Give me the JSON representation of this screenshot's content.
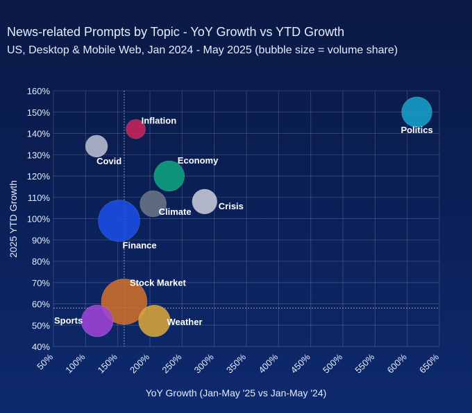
{
  "title": "News-related Prompts by Topic - YoY Growth vs YTD Growth",
  "subtitle": "US, Desktop & Mobile Web, Jan 2024 - May 2025 (bubble size = volume share)",
  "chart_data": {
    "type": "scatter",
    "title": "News-related Prompts by Topic - YoY Growth vs YTD Growth",
    "subtitle": "US, Desktop & Mobile Web, Jan 2024 - May 2025 (bubble size = volume share)",
    "xlabel": "YoY Growth (Jan-May '25 vs Jan-May '24)",
    "ylabel": "2025 YTD Growth",
    "xlim": [
      50,
      650
    ],
    "ylim": [
      40,
      160
    ],
    "x_ticks": [
      "50%",
      "100%",
      "150%",
      "200%",
      "250%",
      "300%",
      "350%",
      "400%",
      "450%",
      "500%",
      "550%",
      "600%",
      "650%"
    ],
    "y_ticks": [
      "40%",
      "50%",
      "60%",
      "70%",
      "80%",
      "90%",
      "100%",
      "110%",
      "120%",
      "130%",
      "140%",
      "150%",
      "160%"
    ],
    "grid": true,
    "reference_lines": {
      "x": 160,
      "y": 58
    },
    "points": [
      {
        "label": "Politics",
        "x": 615,
        "y": 150,
        "size": 22,
        "color": "#16a0c9"
      },
      {
        "label": "Inflation",
        "x": 178,
        "y": 142,
        "size": 14,
        "color": "#c8245a"
      },
      {
        "label": "Covid",
        "x": 117,
        "y": 134,
        "size": 16,
        "color": "#b9bfd0"
      },
      {
        "label": "Economy",
        "x": 230,
        "y": 120,
        "size": 22,
        "color": "#10a37f"
      },
      {
        "label": "Crisis",
        "x": 285,
        "y": 108,
        "size": 18,
        "color": "#c7cbd8"
      },
      {
        "label": "Climate",
        "x": 205,
        "y": 107,
        "size": 19,
        "color": "#6b7385"
      },
      {
        "label": "Finance",
        "x": 152,
        "y": 99,
        "size": 30,
        "color": "#1a4fe6"
      },
      {
        "label": "Stock Market",
        "x": 160,
        "y": 61,
        "size": 33,
        "color": "#d06f2a"
      },
      {
        "label": "Weather",
        "x": 207,
        "y": 52,
        "size": 23,
        "color": "#d8a43a"
      },
      {
        "label": "Sports",
        "x": 118,
        "y": 52,
        "size": 23,
        "color": "#a043d8"
      }
    ]
  }
}
